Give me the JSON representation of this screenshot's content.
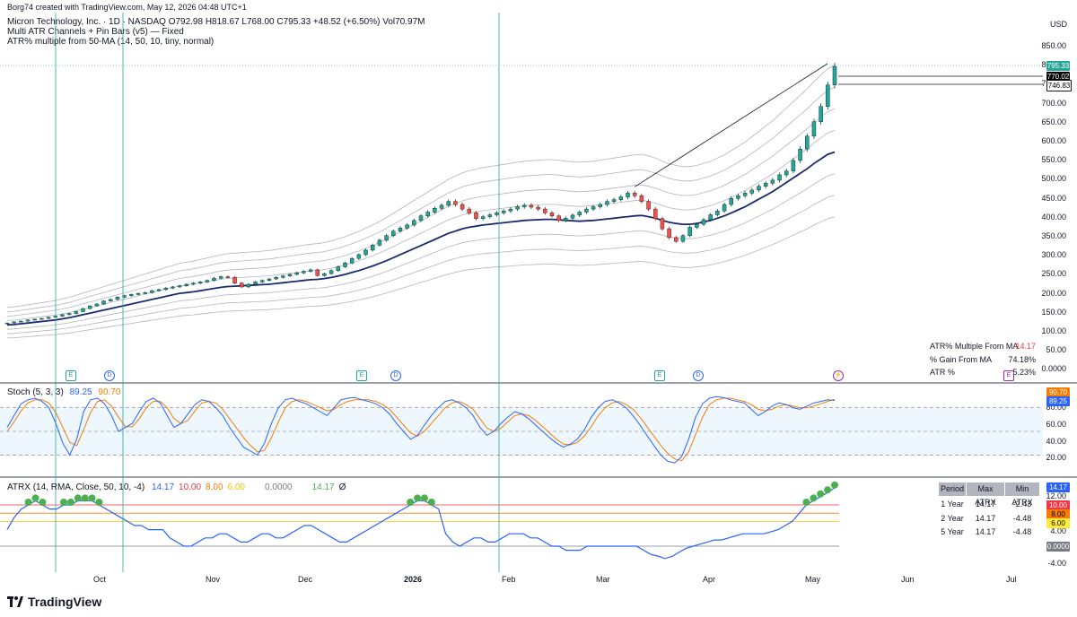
{
  "header": {
    "attribution": "Borg74 created with TradingView.com, May 12, 2026 04:48 UTC+1",
    "symbol_line": "Micron Technology, Inc. · 1D · NASDAQ  O792.98  H818.67  L768.00  C795.33  +48.52 (+6.50%)  Vol70.97M",
    "indicator_1": "Multi ATR Channels + Pin Bars (v5) — Fixed",
    "indicator_2": "ATR% multiple from 50-MA (14, 50, 10, tiny, normal)"
  },
  "currency": "USD",
  "price_axis": {
    "ticks": [
      "850.00",
      "800.00",
      "750.00",
      "700.00",
      "650.00",
      "600.00",
      "550.00",
      "500.00",
      "450.00",
      "400.00",
      "350.00",
      "300.00",
      "250.00",
      "200.00",
      "150.00",
      "100.00",
      "50.00",
      "0.0000"
    ],
    "tags": [
      {
        "value": "795.33",
        "bg": "#26a69a",
        "fg": "#ffffff"
      },
      {
        "value": "770.02",
        "bg": "#000000",
        "fg": "#ffffff"
      },
      {
        "value": "746.83",
        "bg": "#ffffff",
        "fg": "#000000"
      }
    ]
  },
  "atr_table": {
    "rows": [
      {
        "label": "ATR% Multiple From MA",
        "value": "14.17",
        "color": "#f23645"
      },
      {
        "label": "% Gain From MA",
        "value": "74.18%",
        "color": "#131722"
      },
      {
        "label": "ATR %",
        "value": "5.23%",
        "color": "#131722"
      }
    ]
  },
  "stoch": {
    "title": "Stoch (5, 3, 3)",
    "k": "89.25",
    "d": "90.70",
    "ticks": [
      "80.00",
      "60.00",
      "40.00",
      "20.00"
    ],
    "tags": [
      {
        "value": "90.70",
        "bg": "#f57c00"
      },
      {
        "value": "89.25",
        "bg": "#2962ff"
      }
    ]
  },
  "atrx": {
    "title": "ATRX (14, RMA, Close, 50, 10, -4)",
    "values": [
      {
        "text": "14.17",
        "color": "#2962ff"
      },
      {
        "text": "10.00",
        "color": "#f23645"
      },
      {
        "text": "8.00",
        "color": "#f57c00"
      },
      {
        "text": "6.00",
        "color": "#f5c000"
      },
      {
        "text": "0.0000",
        "color": "#787b86"
      },
      {
        "text": "14.17",
        "color": "#4caf50"
      },
      {
        "text": "Ø",
        "color": "#131722"
      }
    ],
    "ticks": [
      "12.00",
      "4.00",
      "-4.00"
    ],
    "tags": [
      {
        "value": "14.17",
        "bg": "#2962ff",
        "fg": "#ffffff"
      },
      {
        "value": "10.00",
        "bg": "#f23645",
        "fg": "#ffffff"
      },
      {
        "value": "8.00",
        "bg": "#f57c00",
        "fg": "#000000"
      },
      {
        "value": "6.00",
        "bg": "#ffeb3b",
        "fg": "#000000"
      },
      {
        "value": "0.0000",
        "bg": "#787b86",
        "fg": "#ffffff"
      }
    ],
    "table": {
      "headers": [
        "Period",
        "Max ATRX",
        "Min ATRX"
      ],
      "rows": [
        [
          "1 Year",
          "14.17",
          "-2.43"
        ],
        [
          "2 Year",
          "14.17",
          "-4.48"
        ],
        [
          "5 Year",
          "14.17",
          "-4.48"
        ]
      ]
    }
  },
  "time_axis": {
    "labels": [
      {
        "text": "Oct",
        "bold": false
      },
      {
        "text": "Nov",
        "bold": false
      },
      {
        "text": "Dec",
        "bold": false
      },
      {
        "text": "2026",
        "bold": true
      },
      {
        "text": "Feb",
        "bold": false
      },
      {
        "text": "Mar",
        "bold": false
      },
      {
        "text": "Apr",
        "bold": false
      },
      {
        "text": "May",
        "bold": false
      },
      {
        "text": "Jun",
        "bold": false
      },
      {
        "text": "Jul",
        "bold": false
      }
    ]
  },
  "events": {
    "earnings": "E",
    "dividend": "D"
  },
  "footer": {
    "logo_text": "TradingView"
  },
  "chart_data": {
    "type": "candlestick",
    "price_series": {
      "name": "",
      "ohlc_last": {
        "open": 792.98,
        "high": 818.67,
        "low": 768.0,
        "close": 795.33
      },
      "closes": [
        120,
        123,
        125,
        128,
        130,
        132,
        135,
        138,
        142,
        145,
        150,
        158,
        165,
        170,
        178,
        182,
        188,
        192,
        195,
        198,
        200,
        205,
        208,
        212,
        215,
        218,
        222,
        225,
        228,
        232,
        238,
        242,
        240,
        225,
        215,
        222,
        228,
        232,
        236,
        240,
        244,
        248,
        252,
        256,
        260,
        245,
        250,
        258,
        268,
        278,
        290,
        300,
        312,
        325,
        338,
        350,
        362,
        370,
        378,
        390,
        402,
        412,
        422,
        430,
        440,
        432,
        420,
        410,
        395,
        400,
        405,
        410,
        415,
        420,
        426,
        430,
        425,
        420,
        410,
        402,
        390,
        396,
        404,
        412,
        420,
        426,
        432,
        440,
        445,
        452,
        462,
        455,
        440,
        420,
        395,
        368,
        345,
        335,
        350,
        372,
        380,
        392,
        405,
        415,
        432,
        448,
        455,
        462,
        470,
        480,
        488,
        496,
        510,
        520,
        548,
        578,
        612,
        650,
        690,
        746.83,
        795.33
      ],
      "ma50": [
        115,
        116,
        118,
        120,
        122,
        124,
        126,
        128,
        131,
        134,
        138,
        142,
        146,
        150,
        154,
        158,
        162,
        166,
        170,
        174,
        178,
        182,
        186,
        190,
        194,
        198,
        200,
        202,
        205,
        208,
        211,
        214,
        216,
        217,
        218,
        219,
        220,
        221,
        222,
        224,
        226,
        228,
        230,
        232,
        234,
        235,
        237,
        240,
        244,
        248,
        253,
        258,
        264,
        270,
        277,
        284,
        292,
        300,
        308,
        316,
        324,
        332,
        340,
        348,
        356,
        362,
        368,
        372,
        375,
        378,
        380,
        382,
        384,
        386,
        388,
        390,
        391,
        392,
        393,
        393,
        392,
        390,
        389,
        388,
        389,
        390,
        392,
        394,
        396,
        398,
        400,
        402,
        403,
        400,
        396,
        390,
        385,
        382,
        380,
        380,
        382,
        386,
        390,
        396,
        402,
        410,
        418,
        426,
        436,
        446,
        456,
        466,
        478,
        490,
        502,
        514,
        526,
        540,
        552,
        564,
        570
      ]
    },
    "stoch": {
      "k_last": 89.25,
      "d_last": 90.7,
      "bands": [
        80,
        50,
        20
      ],
      "k": [
        55,
        70,
        85,
        90,
        92,
        88,
        80,
        60,
        35,
        20,
        40,
        75,
        90,
        92,
        85,
        70,
        50,
        55,
        60,
        75,
        88,
        92,
        86,
        70,
        55,
        60,
        72,
        84,
        90,
        88,
        80,
        70,
        55,
        42,
        30,
        25,
        20,
        35,
        60,
        80,
        90,
        92,
        88,
        85,
        80,
        75,
        70,
        80,
        90,
        92,
        93,
        90,
        88,
        85,
        80,
        72,
        60,
        50,
        40,
        45,
        58,
        70,
        80,
        88,
        90,
        86,
        80,
        70,
        55,
        45,
        50,
        60,
        68,
        75,
        72,
        66,
        58,
        50,
        42,
        35,
        30,
        34,
        40,
        52,
        68,
        80,
        88,
        90,
        86,
        80,
        70,
        58,
        45,
        32,
        20,
        12,
        10,
        18,
        40,
        68,
        85,
        92,
        94,
        93,
        90,
        88,
        86,
        78,
        70,
        75,
        82,
        86,
        84,
        80,
        78,
        82,
        86,
        88,
        90,
        89.25
      ],
      "d": [
        50,
        62,
        76,
        86,
        90,
        90,
        86,
        74,
        55,
        36,
        32,
        52,
        74,
        88,
        90,
        82,
        68,
        56,
        56,
        66,
        80,
        88,
        88,
        80,
        66,
        60,
        64,
        76,
        86,
        88,
        86,
        78,
        66,
        54,
        42,
        32,
        24,
        26,
        42,
        62,
        80,
        88,
        90,
        88,
        84,
        80,
        76,
        78,
        84,
        88,
        90,
        90,
        90,
        88,
        84,
        78,
        68,
        58,
        48,
        44,
        50,
        60,
        70,
        80,
        86,
        88,
        84,
        78,
        66,
        54,
        50,
        54,
        62,
        70,
        72,
        70,
        64,
        56,
        48,
        40,
        34,
        33,
        36,
        44,
        56,
        70,
        80,
        86,
        88,
        84,
        78,
        68,
        56,
        44,
        32,
        22,
        15,
        13,
        24,
        46,
        68,
        84,
        90,
        92,
        92,
        90,
        88,
        84,
        78,
        76,
        78,
        82,
        84,
        82,
        80,
        80,
        82,
        85,
        88,
        90.7
      ]
    },
    "atrx": {
      "last": 14.17,
      "levels": [
        10,
        8,
        6,
        0,
        -4
      ],
      "values": [
        4,
        7,
        9,
        10,
        11,
        10,
        9,
        9,
        10,
        10,
        11,
        11,
        11,
        10,
        9,
        8,
        7,
        6,
        5,
        5,
        4,
        4,
        4,
        2,
        1,
        0,
        0,
        1,
        2,
        2,
        3,
        3,
        2,
        1,
        1,
        2,
        3,
        3,
        2,
        2,
        3,
        4,
        5,
        5,
        4,
        3,
        2,
        1,
        1,
        2,
        3,
        4,
        5,
        6,
        7,
        8,
        9,
        10,
        11,
        11,
        10,
        9,
        3,
        1,
        0,
        1,
        2,
        2,
        1,
        1,
        2,
        3,
        3,
        3,
        2,
        2,
        1,
        0,
        0,
        -1,
        -1,
        -1,
        0,
        0,
        0,
        0,
        0,
        0,
        0,
        0,
        -1,
        -2,
        -2.4,
        -3,
        -2.5,
        -1.5,
        -0.5,
        0,
        0.5,
        1,
        1.5,
        1.5,
        2,
        2.5,
        3,
        3,
        3,
        3,
        3.5,
        4,
        5,
        6,
        8,
        10,
        11,
        12,
        13,
        14.17
      ]
    }
  }
}
